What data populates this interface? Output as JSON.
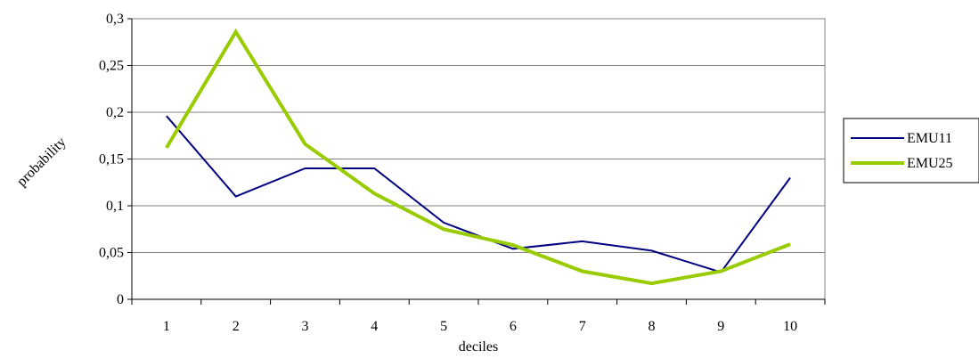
{
  "chart_data": {
    "type": "line",
    "xlabel": "deciles",
    "ylabel": "probability",
    "categories": [
      "1",
      "2",
      "3",
      "4",
      "5",
      "6",
      "7",
      "8",
      "9",
      "10"
    ],
    "ylim": [
      0,
      0.3
    ],
    "yticks": [
      "0",
      "0,05",
      "0,1",
      "0,15",
      "0,2",
      "0,25",
      "0,3"
    ],
    "ytick_values": [
      0,
      0.05,
      0.1,
      0.15,
      0.2,
      0.25,
      0.3
    ],
    "grid": "horizontal",
    "legend_position": "right",
    "series": [
      {
        "name": "EMU11",
        "color": "#000080",
        "values": [
          0.196,
          0.11,
          0.14,
          0.14,
          0.082,
          0.054,
          0.062,
          0.052,
          0.029,
          0.13
        ]
      },
      {
        "name": "EMU25",
        "color": "#99CC00",
        "values": [
          0.162,
          0.286,
          0.166,
          0.113,
          0.075,
          0.058,
          0.03,
          0.017,
          0.03,
          0.059
        ]
      }
    ]
  }
}
